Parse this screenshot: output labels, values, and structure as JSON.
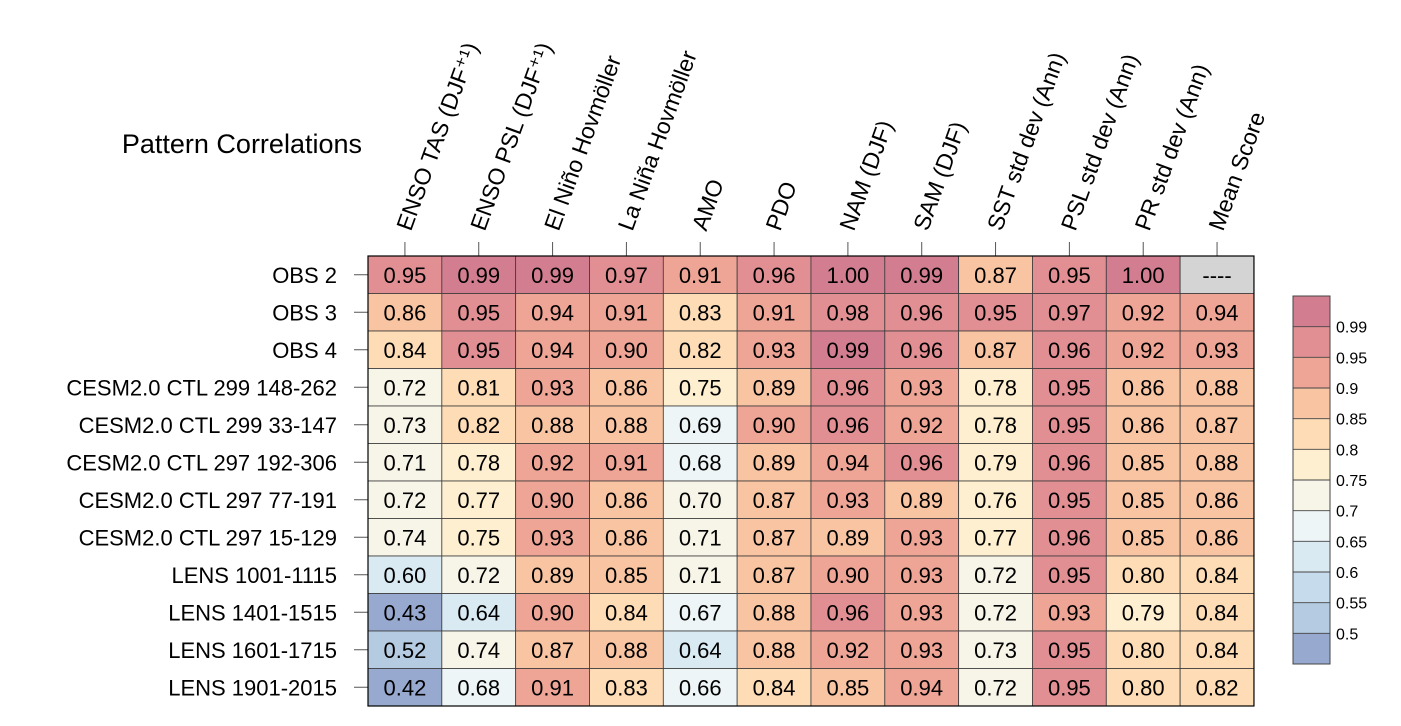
{
  "chart_data": {
    "type": "heatmap",
    "title": "Pattern Correlations",
    "columns": [
      "ENSO TAS (DJF⁺¹)",
      "ENSO PSL (DJF⁺¹)",
      "El Niño Hovmöller",
      "La Niña Hovmöller",
      "AMO",
      "PDO",
      "NAM (DJF)",
      "SAM (DJF)",
      "SST std dev (Ann)",
      "PSL std dev (Ann)",
      "PR std dev (Ann)",
      "Mean Score"
    ],
    "rows": [
      "OBS 2",
      "OBS 3",
      "OBS 4",
      "CESM2.0 CTL 299 148-262",
      "CESM2.0 CTL 299 33-147",
      "CESM2.0 CTL 297 192-306",
      "CESM2.0 CTL 297 77-191",
      "CESM2.0 CTL 297 15-129",
      "LENS 1001-1115",
      "LENS 1401-1515",
      "LENS 1601-1715",
      "LENS 1901-2015"
    ],
    "values": [
      [
        "0.95",
        "0.99",
        "0.99",
        "0.97",
        "0.91",
        "0.96",
        "1.00",
        "0.99",
        "0.87",
        "0.95",
        "1.00",
        "----"
      ],
      [
        "0.86",
        "0.95",
        "0.94",
        "0.91",
        "0.83",
        "0.91",
        "0.98",
        "0.96",
        "0.95",
        "0.97",
        "0.92",
        "0.94"
      ],
      [
        "0.84",
        "0.95",
        "0.94",
        "0.90",
        "0.82",
        "0.93",
        "0.99",
        "0.96",
        "0.87",
        "0.96",
        "0.92",
        "0.93"
      ],
      [
        "0.72",
        "0.81",
        "0.93",
        "0.86",
        "0.75",
        "0.89",
        "0.96",
        "0.93",
        "0.78",
        "0.95",
        "0.86",
        "0.88"
      ],
      [
        "0.73",
        "0.82",
        "0.88",
        "0.88",
        "0.69",
        "0.90",
        "0.96",
        "0.92",
        "0.78",
        "0.95",
        "0.86",
        "0.87"
      ],
      [
        "0.71",
        "0.78",
        "0.92",
        "0.91",
        "0.68",
        "0.89",
        "0.94",
        "0.96",
        "0.79",
        "0.96",
        "0.85",
        "0.88"
      ],
      [
        "0.72",
        "0.77",
        "0.90",
        "0.86",
        "0.70",
        "0.87",
        "0.93",
        "0.89",
        "0.76",
        "0.95",
        "0.85",
        "0.86"
      ],
      [
        "0.74",
        "0.75",
        "0.93",
        "0.86",
        "0.71",
        "0.87",
        "0.89",
        "0.93",
        "0.77",
        "0.96",
        "0.85",
        "0.86"
      ],
      [
        "0.60",
        "0.72",
        "0.89",
        "0.85",
        "0.71",
        "0.87",
        "0.90",
        "0.93",
        "0.72",
        "0.95",
        "0.80",
        "0.84"
      ],
      [
        "0.43",
        "0.64",
        "0.90",
        "0.84",
        "0.67",
        "0.88",
        "0.96",
        "0.93",
        "0.72",
        "0.93",
        "0.79",
        "0.84"
      ],
      [
        "0.52",
        "0.74",
        "0.87",
        "0.88",
        "0.64",
        "0.88",
        "0.92",
        "0.93",
        "0.73",
        "0.95",
        "0.80",
        "0.84"
      ],
      [
        "0.42",
        "0.68",
        "0.91",
        "0.83",
        "0.66",
        "0.84",
        "0.85",
        "0.94",
        "0.72",
        "0.95",
        "0.80",
        "0.82"
      ]
    ],
    "colorbar": {
      "labels": [
        "0.99",
        "0.95",
        "0.9",
        "0.85",
        "0.8",
        "0.75",
        "0.7",
        "0.65",
        "0.6",
        "0.55",
        "0.5"
      ],
      "levels": [
        0.5,
        0.55,
        0.6,
        0.65,
        0.7,
        0.75,
        0.8,
        0.85,
        0.9,
        0.95,
        0.99
      ],
      "colors": [
        "#98a9cf",
        "#b4cbe2",
        "#c6dcec",
        "#daeaf3",
        "#eef5f6",
        "#f7f5e8",
        "#fdefcf",
        "#fddcb6",
        "#f8c4a2",
        "#efa596",
        "#e18f93",
        "#d27e90"
      ]
    },
    "missing_color": "#d4d4d4"
  }
}
